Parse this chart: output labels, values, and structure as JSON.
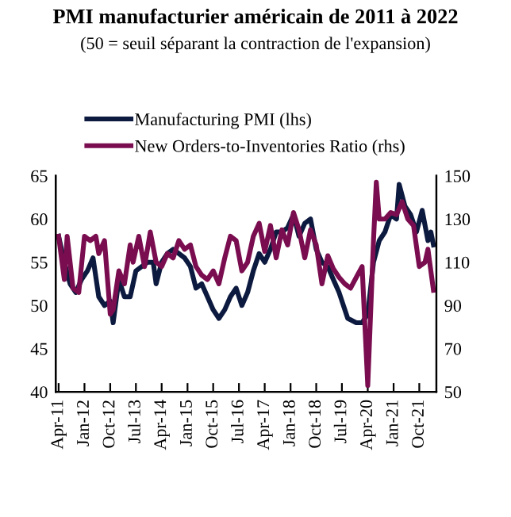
{
  "chart_data": {
    "type": "line",
    "title": "PMI manufacturier américain de 2011 à 2022",
    "subtitle": "(50 = seuil séparant la contraction de l'expansion)",
    "xlim": [
      "2011-03",
      "2022-04"
    ],
    "xticks": [
      {
        "value": "2011-04",
        "label": "Apr-11"
      },
      {
        "value": "2012-01",
        "label": "Jan-12"
      },
      {
        "value": "2012-10",
        "label": "Oct-12"
      },
      {
        "value": "2013-07",
        "label": "Jul-13"
      },
      {
        "value": "2014-04",
        "label": "Apr-14"
      },
      {
        "value": "2015-01",
        "label": "Jan-15"
      },
      {
        "value": "2015-10",
        "label": "Oct-15"
      },
      {
        "value": "2016-07",
        "label": "Jul-16"
      },
      {
        "value": "2017-04",
        "label": "Apr-17"
      },
      {
        "value": "2018-01",
        "label": "Jan-18"
      },
      {
        "value": "2018-10",
        "label": "Oct-18"
      },
      {
        "value": "2019-07",
        "label": "Jul-19"
      },
      {
        "value": "2020-04",
        "label": "Apr-20"
      },
      {
        "value": "2021-01",
        "label": "Jan-21"
      },
      {
        "value": "2021-10",
        "label": "Oct-21"
      }
    ],
    "ylim": [
      40,
      65
    ],
    "yticks": [
      40,
      45,
      50,
      55,
      60,
      65
    ],
    "y2lim": [
      50,
      150
    ],
    "y2ticks": [
      50,
      70,
      90,
      110,
      130,
      150
    ],
    "legend": "top",
    "grid": false,
    "marker": "none",
    "line_style": "solid",
    "series": [
      {
        "name": "Manufacturing PMI (lhs)",
        "color": "#0d1a3f",
        "axis": "y",
        "x": [
          "2011-04",
          "2011-06",
          "2011-08",
          "2011-10",
          "2011-12",
          "2012-02",
          "2012-04",
          "2012-06",
          "2012-08",
          "2012-10",
          "2012-11",
          "2013-01",
          "2013-03",
          "2013-05",
          "2013-07",
          "2013-09",
          "2013-11",
          "2014-01",
          "2014-02",
          "2014-04",
          "2014-06",
          "2014-08",
          "2014-10",
          "2014-12",
          "2015-02",
          "2015-04",
          "2015-06",
          "2015-08",
          "2015-10",
          "2015-12",
          "2016-02",
          "2016-04",
          "2016-06",
          "2016-08",
          "2016-10",
          "2016-12",
          "2017-02",
          "2017-04",
          "2017-06",
          "2017-08",
          "2017-10",
          "2017-12",
          "2018-02",
          "2018-04",
          "2018-06",
          "2018-08",
          "2018-10",
          "2018-12",
          "2019-02",
          "2019-04",
          "2019-06",
          "2019-09",
          "2019-12",
          "2020-02",
          "2020-04",
          "2020-06",
          "2020-08",
          "2020-10",
          "2020-12",
          "2021-02",
          "2021-03",
          "2021-05",
          "2021-07",
          "2021-09",
          "2021-11",
          "2022-01",
          "2022-02",
          "2022-03"
        ],
        "values": [
          58,
          55,
          52.5,
          51.5,
          53,
          54,
          55.5,
          51,
          50,
          50.5,
          48,
          53,
          51,
          51,
          54,
          54.5,
          55,
          55,
          52.5,
          55,
          56,
          56.5,
          56,
          55.5,
          54.5,
          52,
          52.5,
          51,
          49.5,
          48.5,
          49.5,
          51,
          52,
          50,
          51.5,
          54,
          56,
          55,
          56.5,
          58.5,
          58.5,
          59,
          60.5,
          58,
          59.5,
          60,
          56.5,
          55,
          54.5,
          53,
          51.5,
          48.5,
          48,
          48,
          49,
          55,
          57.5,
          58.5,
          60.5,
          60,
          64,
          61.5,
          60.5,
          58.5,
          61,
          57.5,
          58.5,
          57
        ]
      },
      {
        "name": "New Orders-to-Inventories Ratio (rhs)",
        "color": "#7a0d4f",
        "axis": "y2",
        "x": [
          "2011-04",
          "2011-06",
          "2011-07",
          "2011-09",
          "2011-11",
          "2012-01",
          "2012-03",
          "2012-05",
          "2012-06",
          "2012-08",
          "2012-10",
          "2012-11",
          "2013-01",
          "2013-03",
          "2013-05",
          "2013-06",
          "2013-08",
          "2013-10",
          "2013-12",
          "2014-02",
          "2014-04",
          "2014-06",
          "2014-08",
          "2014-10",
          "2014-12",
          "2015-02",
          "2015-04",
          "2015-06",
          "2015-08",
          "2015-10",
          "2015-12",
          "2016-02",
          "2016-04",
          "2016-06",
          "2016-08",
          "2016-10",
          "2016-12",
          "2017-02",
          "2017-04",
          "2017-06",
          "2017-08",
          "2017-10",
          "2017-12",
          "2018-02",
          "2018-04",
          "2018-06",
          "2018-08",
          "2018-10",
          "2018-12",
          "2019-02",
          "2019-04",
          "2019-06",
          "2019-08",
          "2019-10",
          "2019-12",
          "2020-02",
          "2020-04",
          "2020-06",
          "2020-07",
          "2020-08",
          "2020-10",
          "2020-12",
          "2021-02",
          "2021-04",
          "2021-06",
          "2021-08",
          "2021-10",
          "2021-12",
          "2022-01",
          "2022-03"
        ],
        "values": [
          122,
          102,
          122,
          98,
          96,
          122,
          120,
          122,
          114,
          120,
          86,
          88,
          106,
          100,
          118,
          110,
          122,
          108,
          124,
          110,
          108,
          114,
          112,
          120,
          116,
          118,
          108,
          104,
          102,
          106,
          100,
          112,
          122,
          120,
          106,
          110,
          122,
          128,
          115,
          127,
          112,
          125,
          118,
          133,
          125,
          112,
          125,
          118,
          100,
          113,
          107,
          103,
          100,
          98,
          103,
          108,
          53,
          120,
          147,
          130,
          130,
          133,
          132,
          138,
          130,
          127,
          108,
          110,
          116,
          97
        ]
      }
    ]
  }
}
